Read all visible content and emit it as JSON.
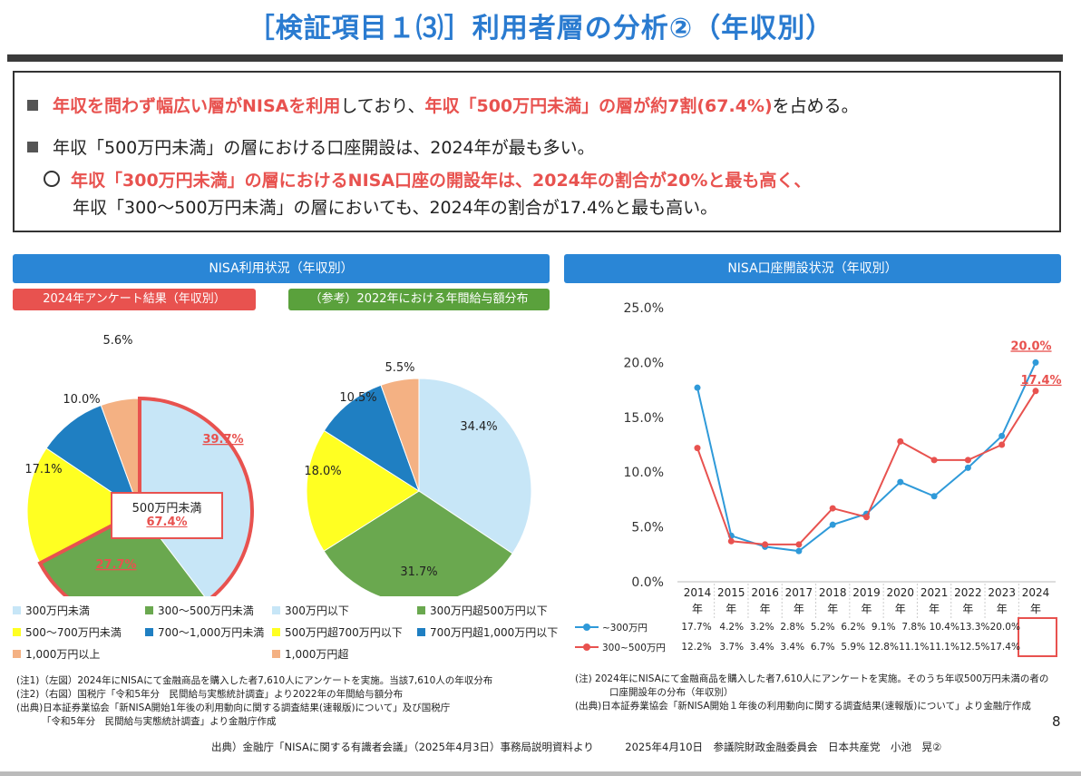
{
  "title": "［検証項目１⑶］利用者層の分析②（年収別）",
  "summary": {
    "line1": {
      "red1": "年収を問わず幅広い層がNISAを利用",
      "plain1": "しており、",
      "red2": "年収「500万円未満」の層が約7割(67.4%)",
      "plain2": "を占める。"
    },
    "line2": "年収「500万円未満」の層における口座開設は、2024年が最も多い。",
    "line3": {
      "red": "年収「300万円未満」の層におけるNISA口座の開設年は、2024年の割合が20%と最も高く、"
    },
    "line4": "年収「300～500万円未満」の層においても、2024年の割合が17.4%と最も高い。"
  },
  "left_banner": "NISA利用状況（年収別）",
  "right_banner": "NISA口座開設状況（年収別）",
  "pill_survey": "2024年アンケート結果（年収別）",
  "pill_ref": "（参考）2022年における年間給与額分布",
  "colors": {
    "c1": "#c7e6f7",
    "c2": "#6aa84f",
    "c3": "#ffff22",
    "c4": "#1f7fc2",
    "c5": "#f4b183",
    "red": "#e8524f",
    "blue": "#2f9ad9",
    "banner": "#2a86d6"
  },
  "chart_data": [
    {
      "type": "pie",
      "title": "2024年アンケート結果（年収別）",
      "labels": [
        "300万円未満",
        "300～500万円未満",
        "500～700万円未満",
        "700～1,000万円未満",
        "1,000万円以上"
      ],
      "values": [
        39.7,
        27.7,
        17.1,
        10.0,
        5.6
      ],
      "value_labels": [
        "39.7%",
        "27.7%",
        "17.1%",
        "10.0%",
        "5.6%"
      ],
      "callout": {
        "line1": "500万円未満",
        "line2": "67.4%"
      }
    },
    {
      "type": "pie",
      "title": "（参考）2022年における年間給与額分布",
      "labels": [
        "300万円以下",
        "300万円超500万円以下",
        "500万円超700万円以下",
        "700万円超1,000万円以下",
        "1,000万円超"
      ],
      "values": [
        34.4,
        31.7,
        18.0,
        10.5,
        5.5
      ],
      "value_labels": [
        "34.4%",
        "31.7%",
        "18.0%",
        "10.5%",
        "5.5%"
      ]
    },
    {
      "type": "line",
      "title": "NISA口座開設状況（年収別）",
      "categories": [
        "2014",
        "2015",
        "2016",
        "2017",
        "2018",
        "2019",
        "2020",
        "2021",
        "2022",
        "2023",
        "2024"
      ],
      "category_suffix": "年",
      "ylim": [
        0,
        25
      ],
      "yticks": [
        "0.0%",
        "5.0%",
        "10.0%",
        "15.0%",
        "20.0%",
        "25.0%"
      ],
      "series": [
        {
          "name": "~300万円",
          "values": [
            17.7,
            4.2,
            3.2,
            2.8,
            5.2,
            6.2,
            9.1,
            7.8,
            10.4,
            13.3,
            20.0
          ],
          "labels": [
            "17.7%",
            "4.2%",
            "3.2%",
            "2.8%",
            "5.2%",
            "6.2%",
            "9.1%",
            "7.8%",
            "10.4%",
            "13.3%",
            "20.0%"
          ]
        },
        {
          "name": "300~500万円",
          "values": [
            12.2,
            3.7,
            3.4,
            3.4,
            6.7,
            5.9,
            12.8,
            11.1,
            11.1,
            12.5,
            17.4
          ],
          "labels": [
            "12.2%",
            "3.7%",
            "3.4%",
            "3.4%",
            "6.7%",
            "5.9%",
            "12.8%",
            "11.1%",
            "11.1%",
            "12.5%",
            "17.4%"
          ]
        }
      ],
      "annotations": [
        "20.0%",
        "17.4%"
      ]
    }
  ],
  "notes_left": [
    "(注1)（左図）2024年にNISAにて金融商品を購入した者7,610人にアンケートを実施。当該7,610人の年収分布",
    "(注2)（右図）国税庁「令和5年分　民間給与実態統計調査」より2022年の年間給与額分布",
    "(出典)日本証券業協会「新NISA開始1年後の利用動向に関する調査結果(速報版)について」及び国税庁",
    "「令和5年分　民間給与実態統計調査」より金融庁作成"
  ],
  "notes_right": [
    "(注) 2024年にNISAにて金融商品を購入した者7,610人にアンケートを実施。そのうち年収500万円未満の者の",
    "口座開設年の分布（年収別）",
    "(出典)日本証券業協会「新NISA開始１年後の利用動向に関する調査結果(速報版)について」より金融庁作成"
  ],
  "page_number": "8",
  "source_line": "出典）金融庁「NISAに関する有識者会議」（2025年4月3日）事務局説明資料より　　　2025年4月10日　参議院財政金融委員会　日本共産党　小池　晃②"
}
